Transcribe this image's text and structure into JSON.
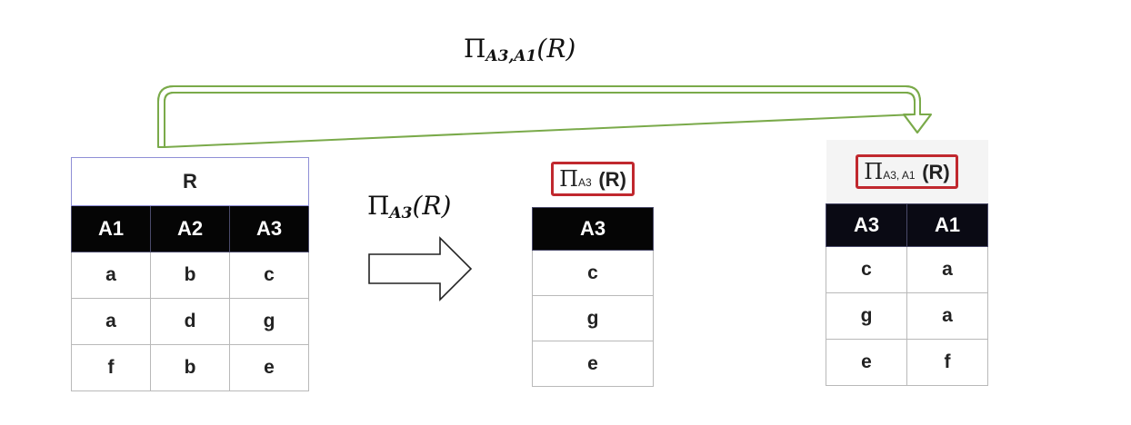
{
  "top_label": {
    "op": "Π",
    "sub": "A3,A1",
    "arg": "(R)"
  },
  "mid_label": {
    "op": "Π",
    "sub": "A3",
    "arg": "(R)"
  },
  "table_r": {
    "title": "R",
    "headers": [
      "A1",
      "A2",
      "A3"
    ],
    "rows": [
      [
        "a",
        "b",
        "c"
      ],
      [
        "a",
        "d",
        "g"
      ],
      [
        "f",
        "b",
        "e"
      ]
    ]
  },
  "table_proj_a3": {
    "caption": {
      "op": "Π",
      "sub": "A3",
      "arg": "(R)"
    },
    "headers": [
      "A3"
    ],
    "rows": [
      [
        "c"
      ],
      [
        "g"
      ],
      [
        "e"
      ]
    ]
  },
  "table_proj_a3_a1": {
    "caption": {
      "op": "Π",
      "sub": "A3, A1",
      "arg": "(R)"
    },
    "headers": [
      "A3",
      "A1"
    ],
    "rows": [
      [
        "c",
        "a"
      ],
      [
        "g",
        "a"
      ],
      [
        "e",
        "f"
      ]
    ]
  },
  "colors": {
    "long_arrow": "#7aaa4a",
    "caption_border": "#c0282e",
    "header_bg": "#000000"
  }
}
